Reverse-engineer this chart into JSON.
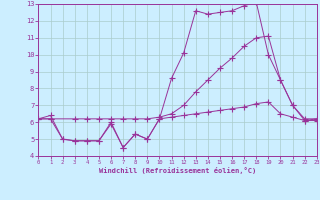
{
  "xlabel": "Windchill (Refroidissement éolien,°C)",
  "bg_color": "#cceeff",
  "line_color": "#993399",
  "grid_color": "#aacccc",
  "xmin": 0,
  "xmax": 23,
  "ymin": 4,
  "ymax": 13,
  "yticks": [
    4,
    5,
    6,
    7,
    8,
    9,
    10,
    11,
    12,
    13
  ],
  "xticks": [
    0,
    1,
    2,
    3,
    4,
    5,
    6,
    7,
    8,
    9,
    10,
    11,
    12,
    13,
    14,
    15,
    16,
    17,
    18,
    19,
    20,
    21,
    22,
    23
  ],
  "series1_x": [
    0,
    1,
    2,
    3,
    4,
    5,
    6,
    7,
    8,
    9,
    10,
    11,
    12,
    13,
    14,
    15,
    16,
    17,
    18,
    19,
    20,
    21,
    22,
    23
  ],
  "series1_y": [
    6.2,
    6.4,
    5.0,
    4.9,
    4.9,
    4.9,
    6.0,
    4.5,
    5.3,
    5.0,
    6.2,
    8.6,
    10.1,
    12.6,
    12.4,
    12.5,
    12.6,
    12.9,
    13.1,
    10.0,
    8.5,
    7.0,
    6.1,
    6.2
  ],
  "series2_x": [
    0,
    1,
    3,
    4,
    5,
    6,
    7,
    8,
    9,
    10,
    11,
    12,
    13,
    14,
    15,
    16,
    17,
    18,
    19,
    20,
    21,
    22,
    23
  ],
  "series2_y": [
    6.2,
    6.2,
    6.2,
    6.2,
    6.2,
    6.2,
    6.2,
    6.2,
    6.2,
    6.3,
    6.5,
    7.0,
    7.8,
    8.5,
    9.2,
    9.8,
    10.5,
    11.0,
    11.1,
    8.5,
    7.0,
    6.2,
    6.2
  ],
  "series3_x": [
    0,
    1,
    2,
    3,
    4,
    5,
    6,
    7,
    8,
    9,
    10,
    11,
    12,
    13,
    14,
    15,
    16,
    17,
    18,
    19,
    20,
    21,
    22,
    23
  ],
  "series3_y": [
    6.2,
    6.2,
    5.0,
    4.9,
    4.9,
    4.9,
    5.9,
    4.5,
    5.3,
    5.0,
    6.2,
    6.3,
    6.4,
    6.5,
    6.6,
    6.7,
    6.8,
    6.9,
    7.1,
    7.2,
    6.5,
    6.3,
    6.1,
    6.1
  ]
}
